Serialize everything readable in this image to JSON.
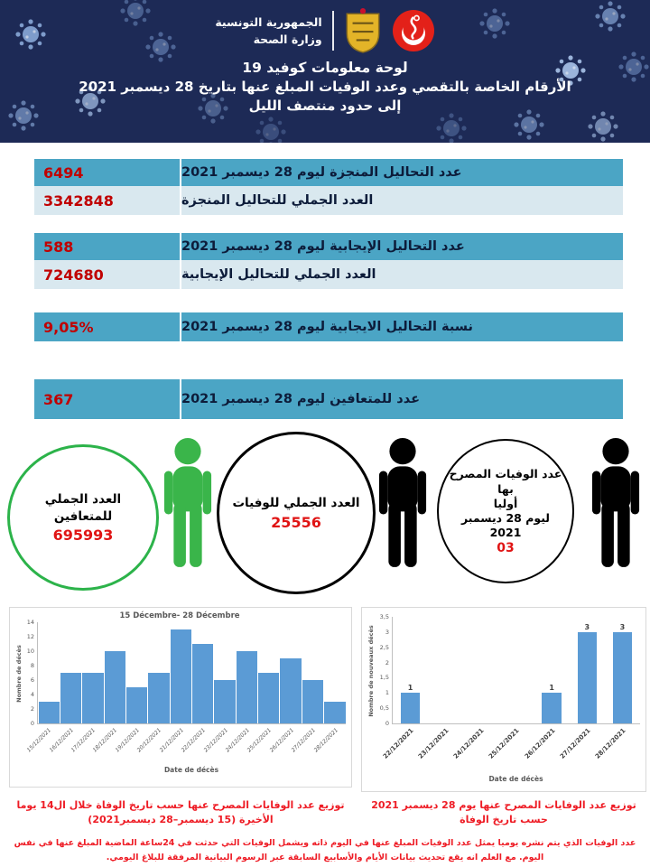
{
  "header": {
    "ministry_line1": "الجمهورية التونسية",
    "ministry_line2": "وزارة الصحة",
    "title_line1": "لوحة معلومات كوفيد  19",
    "title_line2": "الأرقام الخاصة بالتقصي وعدد الوفيات المبلغ عنها بتاريخ 28 ديسمبر 2021",
    "title_line3": "إلى حدود منتصف الليل",
    "bg_color": "#1d2a56"
  },
  "stats": {
    "tests_done_day": {
      "label": "عدد التحاليل المنجزة ليوم 28 ديسمبر 2021",
      "value": "6494"
    },
    "tests_done_total": {
      "label": "العدد الجملي للتحاليل المنجزة",
      "value": "3342848"
    },
    "tests_pos_day": {
      "label": "عدد التحاليل الإيجابية ليوم 28 ديسمبر 2021",
      "value": "588"
    },
    "tests_pos_total": {
      "label": "العدد الجملي للتحاليل الإيجابية",
      "value": "724680"
    },
    "positivity_rate": {
      "label": "نسبة التحاليل الايجابية ليوم 28 ديسمبر 2021",
      "value": "9,05%"
    },
    "recovered_day": {
      "label": "عدد للمتعافين ليوم 28 ديسمبر 2021",
      "value": "367"
    }
  },
  "circles": {
    "recovered_total": {
      "label": "العدد الجملي للمتعافين",
      "value": "695993",
      "border_color": "#2cb34a"
    },
    "deaths_total": {
      "label": "العدد الجملي للوفيات",
      "value": "25556",
      "border_color": "#000000"
    },
    "deaths_reported_day": {
      "label_line1": "عدد الوفيات المصرح بها",
      "label_line2": "أوليا",
      "label_line3": "ليوم 28  ديسمبر",
      "label_line4": "2021",
      "value": "03",
      "border_color": "#000000"
    }
  },
  "chart_data": [
    {
      "type": "bar",
      "title": "15 Décembre- 28 Décembre",
      "xlabel": "Date de décès",
      "ylabel": "Nombre de décès",
      "categories": [
        "15/12/2021",
        "16/12/2021",
        "17/12/2021",
        "18/12/2021",
        "19/12/2021",
        "20/12/2021",
        "21/12/2021",
        "22/12/2021",
        "23/12/2021",
        "24/12/2021",
        "25/12/2021",
        "26/12/2021",
        "27/12/2021",
        "28/12/2021"
      ],
      "values": [
        3,
        7,
        7,
        10,
        5,
        7,
        13,
        11,
        6,
        10,
        7,
        9,
        6,
        3
      ],
      "ylim": [
        0,
        14
      ],
      "yticks_top_to_bottom": [
        "14",
        "12",
        "10",
        "8",
        "6",
        "4",
        "2",
        "0"
      ],
      "bar_color": "#5b9bd5",
      "grid": false,
      "legend": false
    },
    {
      "type": "bar",
      "title": "",
      "xlabel": "Date de décès",
      "ylabel": "Nombre de nouveaux décès",
      "categories": [
        "22/12/2021",
        "23/12/2021",
        "24/12/2021",
        "25/12/2021",
        "26/12/2021",
        "27/12/2021",
        "28/12/2021"
      ],
      "values": [
        1,
        0,
        0,
        0,
        1,
        3,
        3
      ],
      "data_labels": [
        "1",
        "",
        "",
        "",
        "1",
        "3",
        "3"
      ],
      "ylim": [
        0,
        3.5
      ],
      "yticks_top_to_bottom": [
        "3,5",
        "3",
        "2,5",
        "2",
        "1,5",
        "1",
        "0,5",
        "0"
      ],
      "bar_color": "#5b9bd5",
      "grid": false,
      "legend": false
    }
  ],
  "captions": {
    "left": "توزيع عدد الوفايات المصرح عنها حسب تاريخ الوفاة خلال ال14 يوما الأخيرة (15 ديسمبر–28 ديسمبر2021)",
    "right": "توزيع عدد الوفايات المصرح عنها يوم 28 ديسمبر 2021 حسب تاريخ الوفاة"
  },
  "footer": {
    "note": "عدد الوفيات الذي يتم نشره يوميا يمثل عدد الوفيات المبلغ عنها في اليوم ذاته ويشمل الوفيات التي حدثت في 24ساعة الماضية المبلغ عنها في نفس  اليوم. مع العلم انه يقع تحديث بيانات الأيام والأسابيع السابقة عبر الرسوم البيانية المرفقة للبلاغ اليومي."
  },
  "colors": {
    "header_navy": "#1d2a56",
    "row_teal": "#4ba5c5",
    "row_light": "#d9e8ef",
    "value_red": "#c00000",
    "caption_red": "#ee1c25",
    "bar_blue": "#5b9bd5",
    "recovered_green": "#2cb34a"
  }
}
